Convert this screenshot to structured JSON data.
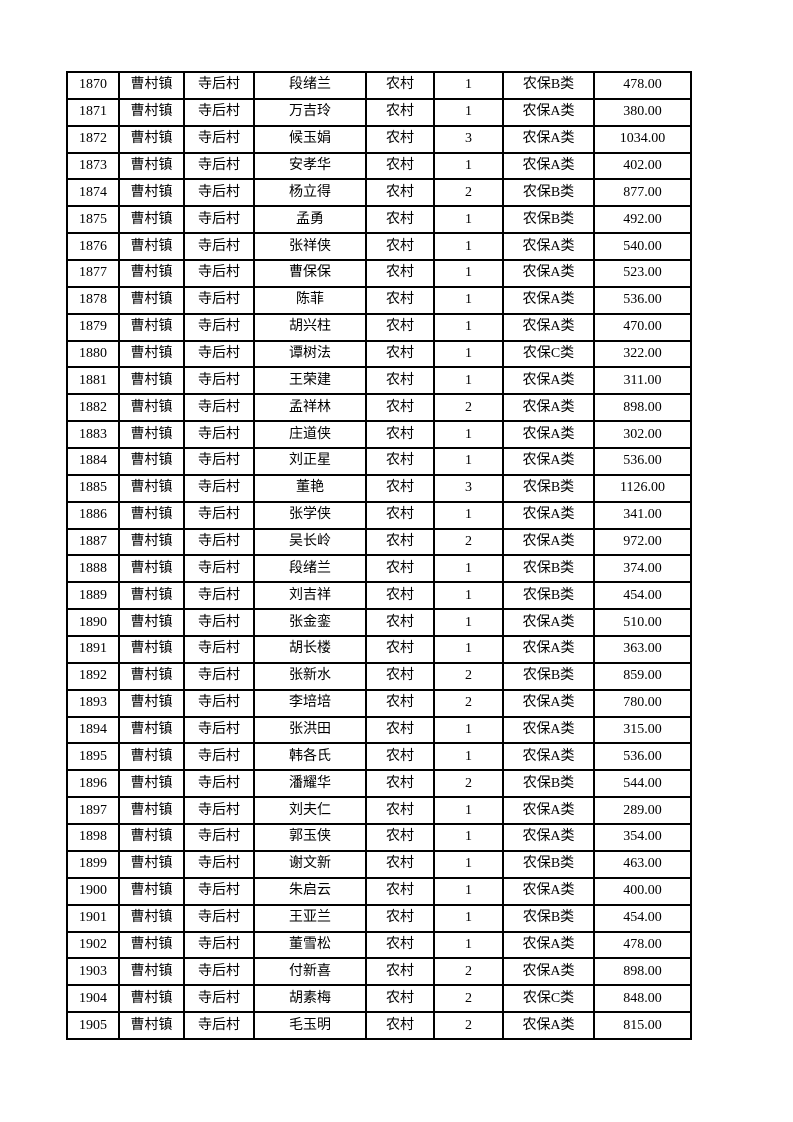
{
  "page": {
    "background": "#ffffff"
  },
  "colors": {
    "border": "#000000",
    "text": "#000000",
    "page_bg": "#ffffff"
  },
  "table": {
    "columns": [
      {
        "key": "seq"
      },
      {
        "key": "town"
      },
      {
        "key": "village"
      },
      {
        "key": "name"
      },
      {
        "key": "residence"
      },
      {
        "key": "count"
      },
      {
        "key": "category"
      },
      {
        "key": "amount"
      }
    ],
    "rows": [
      [
        "1870",
        "曹村镇",
        "寺后村",
        "段绪兰",
        "农村",
        "1",
        "农保B类",
        "478.00"
      ],
      [
        "1871",
        "曹村镇",
        "寺后村",
        "万吉玲",
        "农村",
        "1",
        "农保A类",
        "380.00"
      ],
      [
        "1872",
        "曹村镇",
        "寺后村",
        "候玉娟",
        "农村",
        "3",
        "农保A类",
        "1034.00"
      ],
      [
        "1873",
        "曹村镇",
        "寺后村",
        "安孝华",
        "农村",
        "1",
        "农保A类",
        "402.00"
      ],
      [
        "1874",
        "曹村镇",
        "寺后村",
        "杨立得",
        "农村",
        "2",
        "农保B类",
        "877.00"
      ],
      [
        "1875",
        "曹村镇",
        "寺后村",
        "孟勇",
        "农村",
        "1",
        "农保B类",
        "492.00"
      ],
      [
        "1876",
        "曹村镇",
        "寺后村",
        "张祥侠",
        "农村",
        "1",
        "农保A类",
        "540.00"
      ],
      [
        "1877",
        "曹村镇",
        "寺后村",
        "曹保保",
        "农村",
        "1",
        "农保A类",
        "523.00"
      ],
      [
        "1878",
        "曹村镇",
        "寺后村",
        "陈菲",
        "农村",
        "1",
        "农保A类",
        "536.00"
      ],
      [
        "1879",
        "曹村镇",
        "寺后村",
        "胡兴柱",
        "农村",
        "1",
        "农保A类",
        "470.00"
      ],
      [
        "1880",
        "曹村镇",
        "寺后村",
        "谭树法",
        "农村",
        "1",
        "农保C类",
        "322.00"
      ],
      [
        "1881",
        "曹村镇",
        "寺后村",
        "王荣建",
        "农村",
        "1",
        "农保A类",
        "311.00"
      ],
      [
        "1882",
        "曹村镇",
        "寺后村",
        "孟祥林",
        "农村",
        "2",
        "农保A类",
        "898.00"
      ],
      [
        "1883",
        "曹村镇",
        "寺后村",
        "庄道侠",
        "农村",
        "1",
        "农保A类",
        "302.00"
      ],
      [
        "1884",
        "曹村镇",
        "寺后村",
        "刘正星",
        "农村",
        "1",
        "农保A类",
        "536.00"
      ],
      [
        "1885",
        "曹村镇",
        "寺后村",
        "董艳",
        "农村",
        "3",
        "农保B类",
        "1126.00"
      ],
      [
        "1886",
        "曹村镇",
        "寺后村",
        "张学侠",
        "农村",
        "1",
        "农保A类",
        "341.00"
      ],
      [
        "1887",
        "曹村镇",
        "寺后村",
        "吴长岭",
        "农村",
        "2",
        "农保A类",
        "972.00"
      ],
      [
        "1888",
        "曹村镇",
        "寺后村",
        "段绪兰",
        "农村",
        "1",
        "农保B类",
        "374.00"
      ],
      [
        "1889",
        "曹村镇",
        "寺后村",
        "刘吉祥",
        "农村",
        "1",
        "农保B类",
        "454.00"
      ],
      [
        "1890",
        "曹村镇",
        "寺后村",
        "张金銮",
        "农村",
        "1",
        "农保A类",
        "510.00"
      ],
      [
        "1891",
        "曹村镇",
        "寺后村",
        "胡长楼",
        "农村",
        "1",
        "农保A类",
        "363.00"
      ],
      [
        "1892",
        "曹村镇",
        "寺后村",
        "张新水",
        "农村",
        "2",
        "农保B类",
        "859.00"
      ],
      [
        "1893",
        "曹村镇",
        "寺后村",
        "李培培",
        "农村",
        "2",
        "农保A类",
        "780.00"
      ],
      [
        "1894",
        "曹村镇",
        "寺后村",
        "张洪田",
        "农村",
        "1",
        "农保A类",
        "315.00"
      ],
      [
        "1895",
        "曹村镇",
        "寺后村",
        "韩各氏",
        "农村",
        "1",
        "农保A类",
        "536.00"
      ],
      [
        "1896",
        "曹村镇",
        "寺后村",
        "潘耀华",
        "农村",
        "2",
        "农保B类",
        "544.00"
      ],
      [
        "1897",
        "曹村镇",
        "寺后村",
        "刘夫仁",
        "农村",
        "1",
        "农保A类",
        "289.00"
      ],
      [
        "1898",
        "曹村镇",
        "寺后村",
        "郭玉侠",
        "农村",
        "1",
        "农保A类",
        "354.00"
      ],
      [
        "1899",
        "曹村镇",
        "寺后村",
        "谢文新",
        "农村",
        "1",
        "农保B类",
        "463.00"
      ],
      [
        "1900",
        "曹村镇",
        "寺后村",
        "朱启云",
        "农村",
        "1",
        "农保A类",
        "400.00"
      ],
      [
        "1901",
        "曹村镇",
        "寺后村",
        "王亚兰",
        "农村",
        "1",
        "农保B类",
        "454.00"
      ],
      [
        "1902",
        "曹村镇",
        "寺后村",
        "董雪松",
        "农村",
        "1",
        "农保A类",
        "478.00"
      ],
      [
        "1903",
        "曹村镇",
        "寺后村",
        "付新喜",
        "农村",
        "2",
        "农保A类",
        "898.00"
      ],
      [
        "1904",
        "曹村镇",
        "寺后村",
        "胡素梅",
        "农村",
        "2",
        "农保C类",
        "848.00"
      ],
      [
        "1905",
        "曹村镇",
        "寺后村",
        "毛玉明",
        "农村",
        "2",
        "农保A类",
        "815.00"
      ]
    ]
  }
}
